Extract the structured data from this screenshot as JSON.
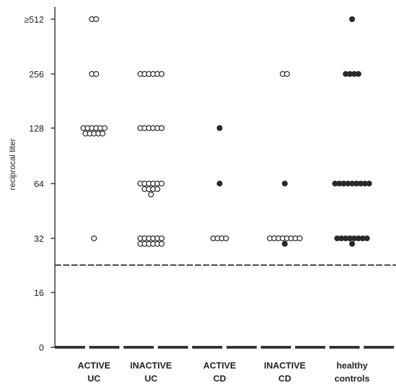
{
  "chart_data": {
    "type": "scatter",
    "ylabel": "reciprocal titer",
    "y_axis_scale": "log2",
    "y_ticks": [
      {
        "value": 0,
        "label": "0"
      },
      {
        "value": 16,
        "label": "16"
      },
      {
        "value": 32,
        "label": "32"
      },
      {
        "value": 64,
        "label": "64"
      },
      {
        "value": 128,
        "label": "128"
      },
      {
        "value": 256,
        "label": "256"
      },
      {
        "value": 512,
        "label": "≥512"
      }
    ],
    "categories": [
      {
        "line1": "ACTIVE",
        "line2": "UC"
      },
      {
        "line1": "INACTIVE",
        "line2": "UC"
      },
      {
        "line1": "ACTIVE",
        "line2": "CD"
      },
      {
        "line1": "INACTIVE",
        "line2": "CD"
      },
      {
        "line1": "healthy",
        "line2": "controls"
      }
    ],
    "cutoff": {
      "value": 23,
      "style": "dashed"
    },
    "marker_colors": {
      "open": "#ffffff",
      "filled": "#2a2a2a",
      "stroke": "#2a2a2a"
    },
    "points": [
      {
        "cat": 0,
        "value": 512,
        "count": 2,
        "filled": false
      },
      {
        "cat": 0,
        "value": 256,
        "count": 2,
        "filled": false
      },
      {
        "cat": 0,
        "value": 128,
        "count": 6,
        "filled": false
      },
      {
        "cat": 0,
        "value": 128,
        "count": 5,
        "filled": false,
        "row": 1
      },
      {
        "cat": 0,
        "value": 32,
        "count": 1,
        "filled": false
      },
      {
        "cat": 1,
        "value": 256,
        "count": 6,
        "filled": false
      },
      {
        "cat": 1,
        "value": 128,
        "count": 6,
        "filled": false
      },
      {
        "cat": 1,
        "value": 64,
        "count": 6,
        "filled": false
      },
      {
        "cat": 1,
        "value": 64,
        "count": 4,
        "filled": false,
        "row": 1
      },
      {
        "cat": 1,
        "value": 64,
        "count": 1,
        "filled": false,
        "row": 2
      },
      {
        "cat": 1,
        "value": 32,
        "count": 6,
        "filled": false
      },
      {
        "cat": 1,
        "value": 32,
        "count": 6,
        "filled": false,
        "row": 1
      },
      {
        "cat": 2,
        "value": 128,
        "count": 1,
        "filled": true
      },
      {
        "cat": 2,
        "value": 64,
        "count": 1,
        "filled": true
      },
      {
        "cat": 2,
        "value": 32,
        "count": 4,
        "filled": false
      },
      {
        "cat": 3,
        "value": 256,
        "count": 2,
        "filled": false
      },
      {
        "cat": 3,
        "value": 64,
        "count": 1,
        "filled": true
      },
      {
        "cat": 3,
        "value": 32,
        "count": 8,
        "filled": false
      },
      {
        "cat": 3,
        "value": 32,
        "count": 1,
        "filled": true,
        "row": 1
      },
      {
        "cat": 4,
        "value": 512,
        "count": 1,
        "filled": true
      },
      {
        "cat": 4,
        "value": 256,
        "count": 4,
        "filled": true
      },
      {
        "cat": 4,
        "value": 64,
        "count": 9,
        "filled": true
      },
      {
        "cat": 4,
        "value": 32,
        "count": 8,
        "filled": true
      },
      {
        "cat": 4,
        "value": 32,
        "count": 1,
        "filled": true,
        "row": 1
      }
    ]
  }
}
